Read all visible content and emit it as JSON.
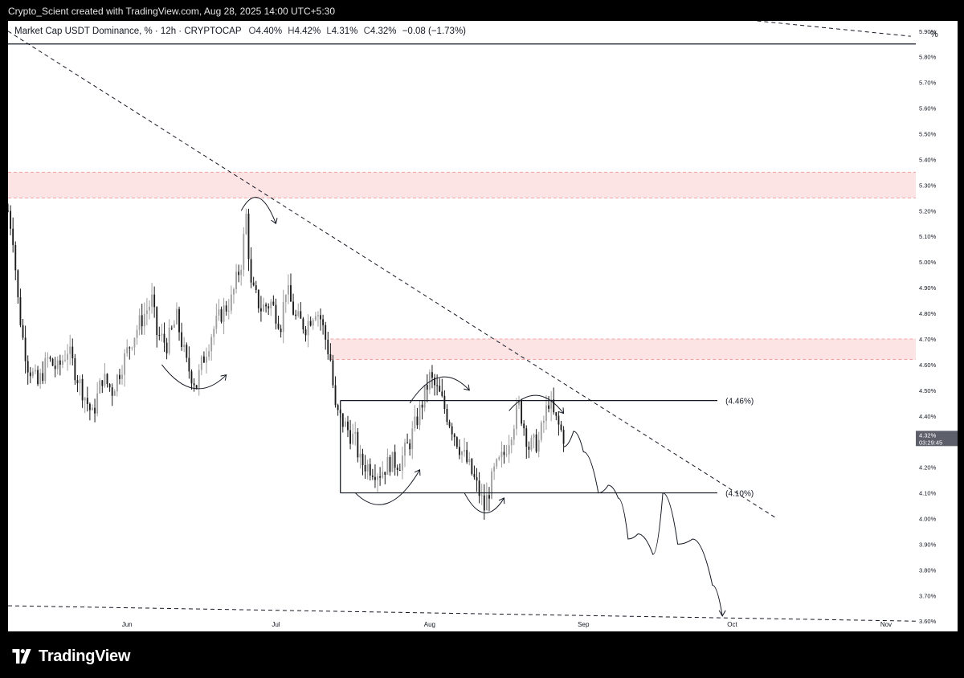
{
  "header": {
    "credit": "Crypto_Scient created with TradingView.com, Aug 28, 2025 14:00 UTC+5:30"
  },
  "legend": {
    "symbol": "Market Cap USDT Dominance, % · 12h · CRYPTOCAP",
    "open_label": "O",
    "open": "4.40%",
    "high_label": "H",
    "high": "4.42%",
    "low_label": "L",
    "low": "4.31%",
    "close_label": "C",
    "close": "4.32%",
    "change": "−0.08 (−1.73%)"
  },
  "price_axis": {
    "unit": "%",
    "current_price": "4.32%",
    "countdown": "03:29:45"
  },
  "footer": {
    "brand": "TradingView"
  },
  "colors": {
    "zone_fill": "#fde4e4",
    "zone_border": "#f4a3a3",
    "candle_up": "#9e9e9e",
    "candle_down": "#1a1a1a",
    "line": "#131722",
    "price_tag": "#5d606b"
  },
  "chart_data": {
    "type": "candlestick",
    "title": "Market Cap USDT Dominance, % · 12h · CRYPTOCAP",
    "ylabel": "%",
    "ylim": [
      3.56,
      5.94
    ],
    "y_ticks": [
      "5.90%",
      "5.80%",
      "5.70%",
      "5.60%",
      "5.50%",
      "5.40%",
      "5.30%",
      "5.20%",
      "5.10%",
      "5.00%",
      "4.90%",
      "4.80%",
      "4.70%",
      "4.60%",
      "4.50%",
      "4.40%",
      "4.30%",
      "4.20%",
      "4.10%",
      "4.00%",
      "3.90%",
      "3.80%",
      "3.70%",
      "3.60%"
    ],
    "x_ticks": [
      "Jun",
      "Jul",
      "Aug",
      "Sep",
      "Oct",
      "Nov"
    ],
    "x_range": [
      "2025-05-08",
      "2025-11-07"
    ],
    "price_path": [
      [
        "2025-05-08",
        5.2
      ],
      [
        "2025-05-09",
        5.1
      ],
      [
        "2025-05-10",
        4.85
      ],
      [
        "2025-05-11",
        4.7
      ],
      [
        "2025-05-12",
        4.6
      ],
      [
        "2025-05-14",
        4.52
      ],
      [
        "2025-05-16",
        4.62
      ],
      [
        "2025-05-18",
        4.58
      ],
      [
        "2025-05-20",
        4.66
      ],
      [
        "2025-05-22",
        4.55
      ],
      [
        "2025-05-24",
        4.45
      ],
      [
        "2025-05-25",
        4.4
      ],
      [
        "2025-05-27",
        4.55
      ],
      [
        "2025-05-29",
        4.5
      ],
      [
        "2025-05-31",
        4.6
      ],
      [
        "2025-06-02",
        4.7
      ],
      [
        "2025-06-04",
        4.78
      ],
      [
        "2025-06-06",
        4.85
      ],
      [
        "2025-06-07",
        4.72
      ],
      [
        "2025-06-09",
        4.68
      ],
      [
        "2025-06-11",
        4.78
      ],
      [
        "2025-06-13",
        4.6
      ],
      [
        "2025-06-15",
        4.52
      ],
      [
        "2025-06-16",
        4.6
      ],
      [
        "2025-06-18",
        4.72
      ],
      [
        "2025-06-20",
        4.8
      ],
      [
        "2025-06-22",
        4.85
      ],
      [
        "2025-06-24",
        5.0
      ],
      [
        "2025-06-25",
        5.18
      ],
      [
        "2025-06-26",
        4.9
      ],
      [
        "2025-06-28",
        4.82
      ],
      [
        "2025-06-30",
        4.84
      ],
      [
        "2025-07-02",
        4.76
      ],
      [
        "2025-07-03",
        4.9
      ],
      [
        "2025-07-05",
        4.78
      ],
      [
        "2025-07-07",
        4.75
      ],
      [
        "2025-07-09",
        4.82
      ],
      [
        "2025-07-10",
        4.78
      ],
      [
        "2025-07-12",
        4.62
      ],
      [
        "2025-07-13",
        4.42
      ],
      [
        "2025-07-15",
        4.36
      ],
      [
        "2025-07-17",
        4.3
      ],
      [
        "2025-07-18",
        4.22
      ],
      [
        "2025-07-20",
        4.2
      ],
      [
        "2025-07-22",
        4.18
      ],
      [
        "2025-07-24",
        4.22
      ],
      [
        "2025-07-26",
        4.22
      ],
      [
        "2025-07-28",
        4.3
      ],
      [
        "2025-07-30",
        4.42
      ],
      [
        "2025-08-01",
        4.55
      ],
      [
        "2025-08-03",
        4.48
      ],
      [
        "2025-08-05",
        4.38
      ],
      [
        "2025-08-07",
        4.28
      ],
      [
        "2025-08-09",
        4.2
      ],
      [
        "2025-08-11",
        4.1
      ],
      [
        "2025-08-12",
        4.04
      ],
      [
        "2025-08-14",
        4.18
      ],
      [
        "2025-08-16",
        4.25
      ],
      [
        "2025-08-18",
        4.38
      ],
      [
        "2025-08-19",
        4.44
      ],
      [
        "2025-08-21",
        4.28
      ],
      [
        "2025-08-23",
        4.3
      ],
      [
        "2025-08-25",
        4.46
      ],
      [
        "2025-08-26",
        4.4
      ],
      [
        "2025-08-28",
        4.32
      ]
    ],
    "horizontal_lines": [
      {
        "price": 5.85
      },
      {
        "price": 4.46,
        "label": "(4.46%)"
      },
      {
        "price": 4.1,
        "label": "(4.10%)"
      }
    ],
    "resistance_zones": [
      {
        "from": 5.25,
        "to": 5.35
      },
      {
        "from": 4.62,
        "to": 4.7
      }
    ],
    "trendlines": [
      {
        "start": [
          "2025-05-08",
          5.9
        ],
        "end": [
          "2025-10-10",
          4.0
        ],
        "style": "dashed"
      },
      {
        "start": [
          "2025-05-08",
          3.66
        ],
        "end": [
          "2025-11-07",
          3.6
        ],
        "style": "dashed"
      },
      {
        "start": [
          "2025-10-06",
          5.94
        ],
        "end": [
          "2025-11-06",
          5.88
        ],
        "style": "dashed"
      }
    ],
    "projection_path": [
      [
        "2025-08-28",
        4.28
      ],
      [
        "2025-08-30",
        4.34
      ],
      [
        "2025-09-01",
        4.26
      ],
      [
        "2025-09-04",
        4.1
      ],
      [
        "2025-09-06",
        4.13
      ],
      [
        "2025-09-08",
        4.08
      ],
      [
        "2025-09-10",
        3.92
      ],
      [
        "2025-09-12",
        3.94
      ],
      [
        "2025-09-15",
        3.86
      ],
      [
        "2025-09-17",
        4.1
      ],
      [
        "2025-09-20",
        3.9
      ],
      [
        "2025-09-23",
        3.92
      ],
      [
        "2025-09-27",
        3.74
      ],
      [
        "2025-09-29",
        3.62
      ]
    ],
    "arrow_annotations": [
      {
        "label": "top-arrow-jun",
        "start": [
          "2025-06-24",
          5.2
        ],
        "end": [
          "2025-07-01",
          5.15
        ]
      },
      {
        "label": "bottom-arrow-jun",
        "start": [
          "2025-06-08",
          4.6
        ],
        "end": [
          "2025-06-21",
          4.56
        ]
      },
      {
        "label": "bottom-arrow-jul",
        "start": [
          "2025-07-17",
          4.1
        ],
        "end": [
          "2025-07-30",
          4.19
        ]
      },
      {
        "label": "top-arrow-aug",
        "start": [
          "2025-07-28",
          4.45
        ],
        "end": [
          "2025-08-09",
          4.5
        ]
      },
      {
        "label": "bottom-arrow-aug",
        "start": [
          "2025-08-08",
          4.1
        ],
        "end": [
          "2025-08-16",
          4.08
        ]
      },
      {
        "label": "top-arrow-aug2",
        "start": [
          "2025-08-17",
          4.42
        ],
        "end": [
          "2025-08-28",
          4.41
        ]
      }
    ]
  }
}
